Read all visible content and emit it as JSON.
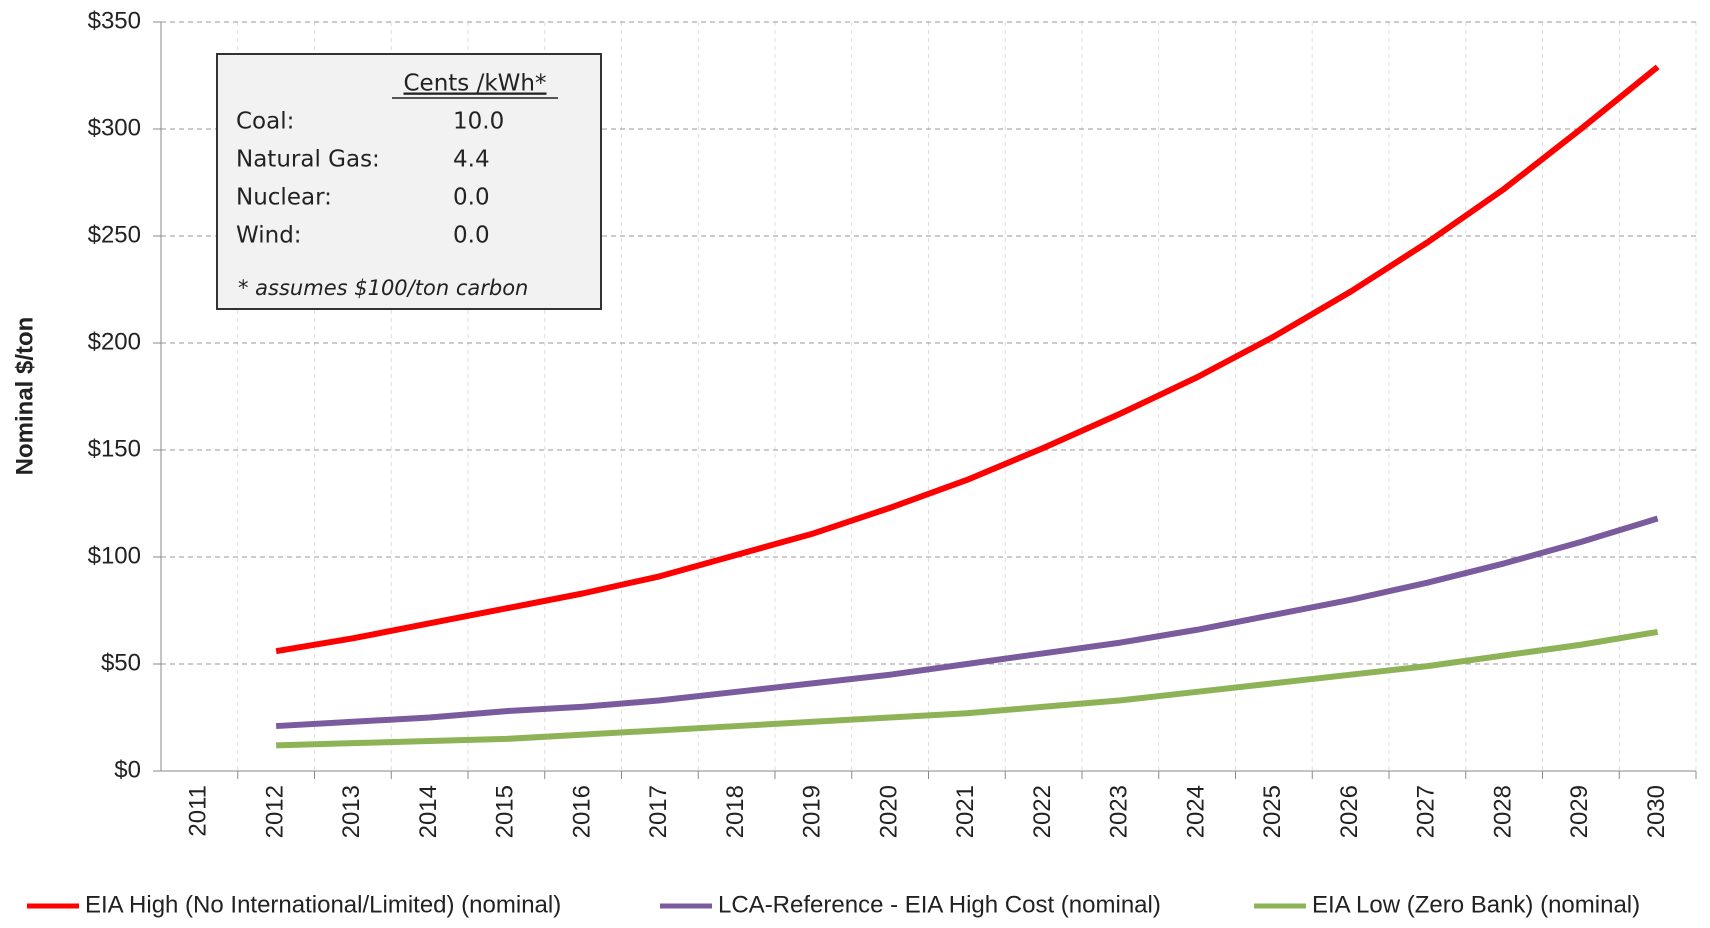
{
  "chart_data": {
    "type": "line",
    "y_label": "Nominal  $/ton",
    "categories": [
      "2011",
      "2012",
      "2013",
      "2014",
      "2015",
      "2016",
      "2017",
      "2018",
      "2019",
      "2020",
      "2021",
      "2022",
      "2023",
      "2024",
      "2025",
      "2026",
      "2027",
      "2028",
      "2029",
      "2030"
    ],
    "series": [
      {
        "name": "EIA High (No International/Limited) (nominal)",
        "color": "#ff0000",
        "values": [
          null,
          56,
          62,
          69,
          76,
          83,
          91,
          101,
          111,
          123,
          136,
          151,
          167,
          184,
          203,
          224,
          247,
          272,
          300,
          329
        ]
      },
      {
        "name": "LCA-Reference - EIA High Cost (nominal)",
        "color": "#7a5c9e",
        "values": [
          null,
          21,
          23,
          25,
          28,
          30,
          33,
          37,
          41,
          45,
          50,
          55,
          60,
          66,
          73,
          80,
          88,
          97,
          107,
          118
        ]
      },
      {
        "name": "EIA Low (Zero Bank) (nominal)",
        "color": "#8db356",
        "values": [
          null,
          12,
          13,
          14,
          15,
          17,
          19,
          21,
          23,
          25,
          27,
          30,
          33,
          37,
          41,
          45,
          49,
          54,
          59,
          65
        ]
      }
    ],
    "ylim": [
      0,
      350
    ],
    "yticks": [
      {
        "value": 0,
        "label": "$0"
      },
      {
        "value": 50,
        "label": "$50"
      },
      {
        "value": 100,
        "label": "$100"
      },
      {
        "value": 150,
        "label": "$150"
      },
      {
        "value": 200,
        "label": "$200"
      },
      {
        "value": 250,
        "label": "$250"
      },
      {
        "value": 300,
        "label": "$300"
      },
      {
        "value": 350,
        "label": "$350"
      }
    ],
    "grid": true,
    "legend": "bottom",
    "inset": {
      "header": "Cents /kWh*",
      "rows": [
        [
          "Coal:",
          "10.0"
        ],
        [
          "Natural Gas:",
          "4.4"
        ],
        [
          "Nuclear:",
          "0.0"
        ],
        [
          "Wind:",
          "0.0"
        ]
      ],
      "note": "* assumes $100/ton carbon"
    }
  }
}
